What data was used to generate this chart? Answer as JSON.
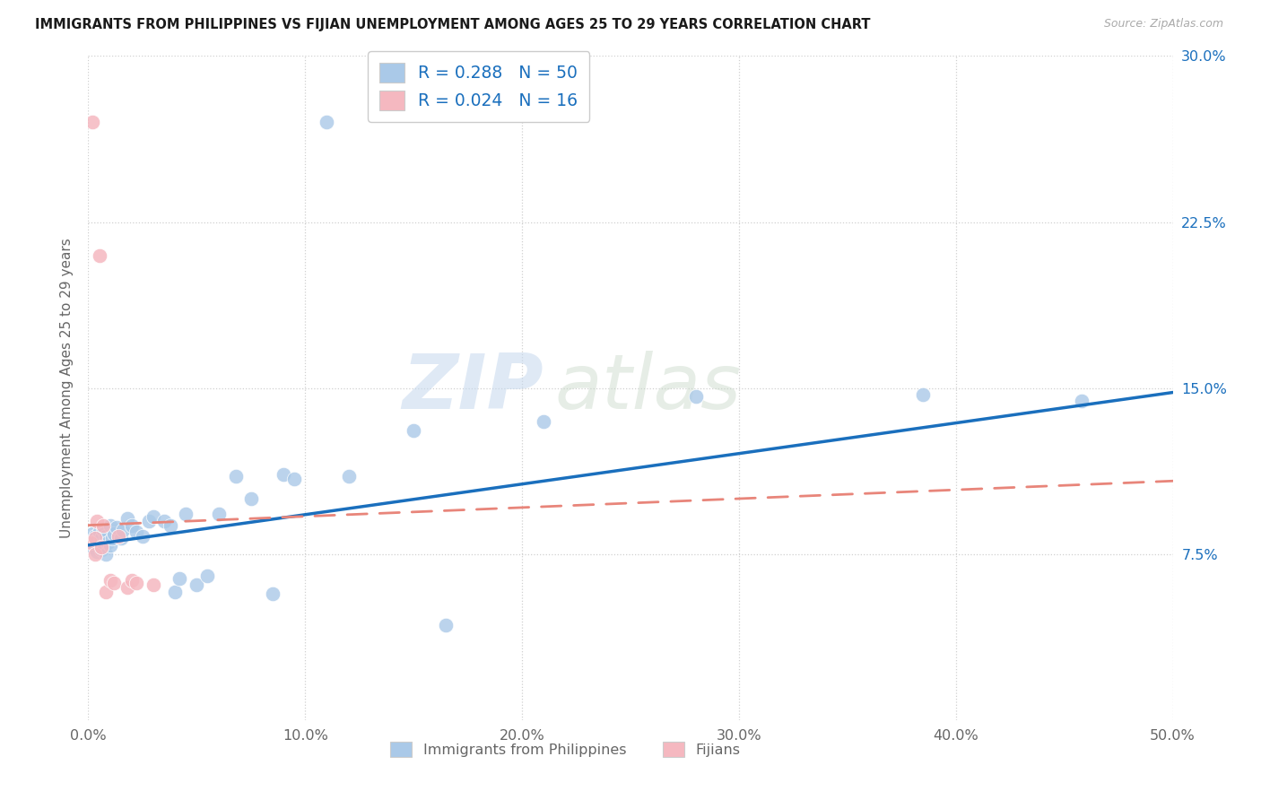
{
  "title": "IMMIGRANTS FROM PHILIPPINES VS FIJIAN UNEMPLOYMENT AMONG AGES 25 TO 29 YEARS CORRELATION CHART",
  "source": "Source: ZipAtlas.com",
  "ylabel": "Unemployment Among Ages 25 to 29 years",
  "xlim": [
    0.0,
    0.5
  ],
  "ylim": [
    0.0,
    0.3
  ],
  "xtick_vals": [
    0.0,
    0.1,
    0.2,
    0.3,
    0.4,
    0.5
  ],
  "xtick_labels": [
    "0.0%",
    "10.0%",
    "20.0%",
    "30.0%",
    "40.0%",
    "50.0%"
  ],
  "ytick_vals": [
    0.075,
    0.15,
    0.225,
    0.3
  ],
  "ytick_labels": [
    "7.5%",
    "15.0%",
    "22.5%",
    "30.0%"
  ],
  "color_blue": "#aac9e8",
  "color_pink": "#f5b8c0",
  "line_blue": "#1a6fbd",
  "line_pink": "#e8857a",
  "blue_line_x": [
    0.0,
    0.5
  ],
  "blue_line_y": [
    0.079,
    0.148
  ],
  "pink_line_x": [
    0.0,
    0.5
  ],
  "pink_line_y": [
    0.088,
    0.108
  ],
  "blue_scatter_x": [
    0.001,
    0.002,
    0.002,
    0.003,
    0.003,
    0.004,
    0.004,
    0.005,
    0.005,
    0.006,
    0.006,
    0.007,
    0.007,
    0.008,
    0.008,
    0.009,
    0.01,
    0.01,
    0.011,
    0.012,
    0.013,
    0.015,
    0.016,
    0.018,
    0.02,
    0.022,
    0.025,
    0.028,
    0.03,
    0.035,
    0.038,
    0.04,
    0.042,
    0.045,
    0.05,
    0.055,
    0.06,
    0.068,
    0.075,
    0.085,
    0.09,
    0.095,
    0.11,
    0.12,
    0.15,
    0.165,
    0.21,
    0.28,
    0.385,
    0.458
  ],
  "blue_scatter_y": [
    0.082,
    0.078,
    0.084,
    0.079,
    0.083,
    0.076,
    0.081,
    0.08,
    0.085,
    0.077,
    0.082,
    0.079,
    0.086,
    0.075,
    0.083,
    0.08,
    0.079,
    0.088,
    0.082,
    0.084,
    0.087,
    0.082,
    0.086,
    0.091,
    0.088,
    0.085,
    0.083,
    0.09,
    0.092,
    0.09,
    0.088,
    0.058,
    0.064,
    0.093,
    0.061,
    0.065,
    0.093,
    0.11,
    0.1,
    0.057,
    0.111,
    0.109,
    0.27,
    0.11,
    0.131,
    0.043,
    0.135,
    0.146,
    0.147,
    0.144
  ],
  "pink_scatter_x": [
    0.001,
    0.002,
    0.003,
    0.003,
    0.004,
    0.005,
    0.006,
    0.007,
    0.008,
    0.01,
    0.012,
    0.014,
    0.018,
    0.02,
    0.022,
    0.03
  ],
  "pink_scatter_y": [
    0.08,
    0.27,
    0.082,
    0.075,
    0.09,
    0.21,
    0.078,
    0.088,
    0.058,
    0.063,
    0.062,
    0.083,
    0.06,
    0.063,
    0.062,
    0.061
  ],
  "watermark_zip": "ZIP",
  "watermark_atlas": "atlas",
  "bg_color": "#ffffff",
  "grid_color": "#d0d0d0",
  "legend_label_blue": "Immigrants from Philippines",
  "legend_label_pink": "Fijians",
  "legend_r1": "R = 0.288",
  "legend_n1": "N = 50",
  "legend_r2": "R = 0.024",
  "legend_n2": "N = 16",
  "tick_label_color": "#1a6fbd",
  "axis_label_color": "#666666"
}
